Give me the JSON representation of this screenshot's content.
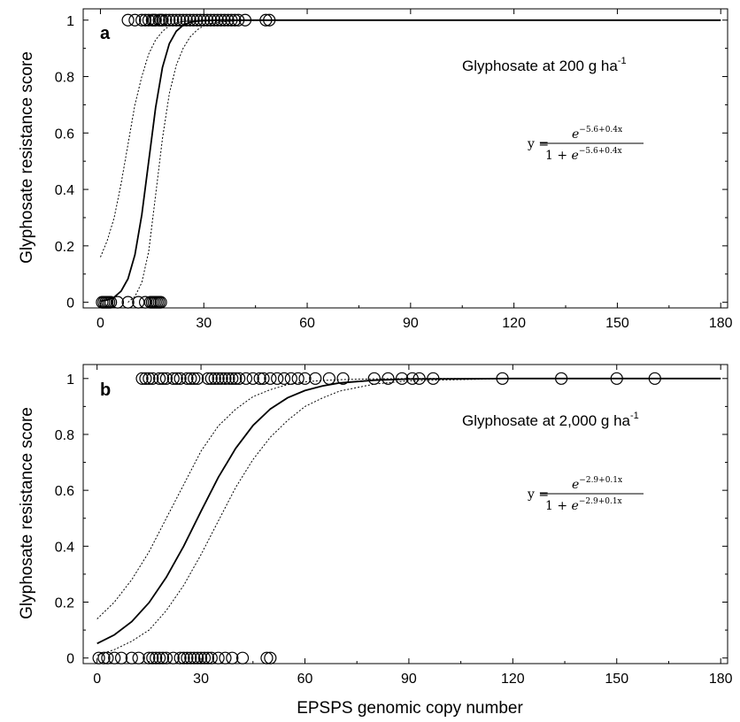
{
  "chart_data": [
    {
      "type": "scatter",
      "panel_label": "a",
      "annotation": {
        "text": "Glyphosate at 200 g ha",
        "sup": "-1"
      },
      "equation": {
        "lhs": "y =",
        "base": "e",
        "exponent": "−5.6+0.4x",
        "denominator_prefix": "1 + "
      },
      "ylabel": "Glyphosate resistance score",
      "xlabel": "",
      "xlim": [
        -5,
        182
      ],
      "ylim": [
        -0.02,
        1.04
      ],
      "xticks": [
        0,
        30,
        60,
        90,
        120,
        150,
        180
      ],
      "yticks": [
        0,
        0.2,
        0.4,
        0.6,
        0.8,
        1
      ],
      "ytick_labels": [
        "0",
        "0.2",
        "0.4",
        "0.6",
        "0.8",
        "1"
      ],
      "series": [
        {
          "kind": "points",
          "x": [
            0.5,
            1,
            1.5,
            2,
            2.5,
            3,
            5,
            8,
            11,
            13,
            14.5,
            15,
            15.5,
            16,
            16.5,
            17,
            17.5
          ],
          "y": [
            0,
            0,
            0,
            0,
            0,
            0,
            0,
            0,
            0,
            0,
            0,
            0,
            0,
            0,
            0,
            0,
            0
          ]
        },
        {
          "kind": "points",
          "x": [
            8,
            10,
            12,
            13,
            14,
            15,
            15.5,
            16,
            17,
            17.5,
            18,
            19,
            20,
            21,
            22,
            23,
            24,
            25,
            26,
            27,
            28,
            29,
            30,
            31,
            32,
            33,
            34,
            35,
            36,
            37,
            38,
            39,
            40,
            42,
            48,
            49
          ],
          "y": [
            1,
            1,
            1,
            1,
            1,
            1,
            1,
            1,
            1,
            1,
            1,
            1,
            1,
            1,
            1,
            1,
            1,
            1,
            1,
            1,
            1,
            1,
            1,
            1,
            1,
            1,
            1,
            1,
            1,
            1,
            1,
            1,
            1,
            1,
            1,
            1
          ]
        },
        {
          "kind": "fit",
          "x": [
            0,
            2,
            4,
            6,
            8,
            10,
            12,
            14,
            16,
            18,
            20,
            22,
            24,
            26,
            28,
            30,
            35,
            40,
            60,
            90,
            120,
            150,
            180
          ],
          "y": [
            0.0037,
            0.0081,
            0.018,
            0.0392,
            0.0832,
            0.168,
            0.31,
            0.5,
            0.69,
            0.832,
            0.9168,
            0.9608,
            0.982,
            0.9919,
            0.9963,
            0.9984,
            0.9998,
            1,
            1,
            1,
            1,
            1,
            1
          ]
        },
        {
          "kind": "ci",
          "x": [
            0,
            2,
            4,
            6,
            8,
            10,
            12,
            14,
            16,
            18,
            20,
            22,
            24,
            26,
            28,
            30,
            35,
            40,
            50,
            60,
            90,
            120,
            150,
            180
          ],
          "y": [
            0.16,
            0.22,
            0.3,
            0.42,
            0.56,
            0.7,
            0.8,
            0.88,
            0.93,
            0.96,
            0.98,
            0.99,
            0.995,
            0.997,
            0.998,
            0.999,
            1,
            1,
            1,
            1,
            1,
            1,
            1,
            1
          ]
        },
        {
          "kind": "ci",
          "x": [
            8,
            10,
            12,
            14,
            16,
            18,
            20,
            22,
            24,
            26,
            28,
            30,
            32,
            35,
            40,
            50,
            60,
            90,
            120,
            150,
            180
          ],
          "y": [
            0,
            0.02,
            0.07,
            0.18,
            0.38,
            0.58,
            0.74,
            0.84,
            0.9,
            0.94,
            0.965,
            0.98,
            0.988,
            0.994,
            0.998,
            1,
            1,
            1,
            1,
            1,
            1
          ]
        }
      ]
    },
    {
      "type": "scatter",
      "panel_label": "b",
      "annotation": {
        "text": "Glyphosate at 2,000 g ha",
        "sup": "-1"
      },
      "equation": {
        "lhs": "y =",
        "base": "e",
        "exponent": "−2.9+0.1x",
        "denominator_prefix": "1 + "
      },
      "ylabel": "Glyphosate resistance score",
      "xlabel": "EPSPS genomic copy number",
      "xlim": [
        -4,
        182
      ],
      "ylim": [
        -0.02,
        1.05
      ],
      "xticks": [
        0,
        30,
        60,
        90,
        120,
        150,
        180
      ],
      "yticks": [
        0,
        0.2,
        0.4,
        0.6,
        0.8,
        1
      ],
      "ytick_labels": [
        "0",
        "0.2",
        "0.4",
        "0.6",
        "0.8",
        "1"
      ],
      "series": [
        {
          "kind": "points",
          "x": [
            0.5,
            2,
            3,
            5,
            7,
            10,
            12,
            15,
            16,
            17,
            18,
            19,
            20,
            22,
            24,
            25,
            26,
            27,
            28,
            29,
            30,
            31,
            32,
            33,
            35,
            37,
            39,
            42,
            49,
            50
          ],
          "y": [
            0,
            0,
            0,
            0,
            0,
            0,
            0,
            0,
            0,
            0,
            0,
            0,
            0,
            0,
            0,
            0,
            0,
            0,
            0,
            0,
            0,
            0,
            0,
            0,
            0,
            0,
            0,
            0,
            0,
            0
          ]
        },
        {
          "kind": "points",
          "x": [
            13,
            14,
            15,
            16,
            18,
            19,
            20,
            22,
            23,
            24,
            26,
            27,
            28,
            29,
            32,
            33,
            34,
            35,
            36,
            37,
            38,
            39,
            40,
            41,
            43,
            45,
            47,
            48,
            50,
            52,
            54,
            56,
            58,
            60,
            63,
            67,
            71,
            80,
            84,
            88,
            91,
            93,
            97,
            117,
            134,
            150,
            161
          ],
          "y": [
            1,
            1,
            1,
            1,
            1,
            1,
            1,
            1,
            1,
            1,
            1,
            1,
            1,
            1,
            1,
            1,
            1,
            1,
            1,
            1,
            1,
            1,
            1,
            1,
            1,
            1,
            1,
            1,
            1,
            1,
            1,
            1,
            1,
            1,
            1,
            1,
            1,
            1,
            1,
            1,
            1,
            1,
            1,
            1,
            1,
            1,
            1
          ]
        },
        {
          "kind": "fit",
          "x": [
            0,
            5,
            10,
            15,
            20,
            25,
            30,
            35,
            40,
            45,
            50,
            55,
            60,
            65,
            70,
            80,
            90,
            120,
            150,
            180
          ],
          "y": [
            0.052,
            0.083,
            0.13,
            0.198,
            0.289,
            0.4,
            0.525,
            0.646,
            0.75,
            0.832,
            0.891,
            0.931,
            0.957,
            0.973,
            0.984,
            0.994,
            0.998,
            1,
            1,
            1
          ]
        },
        {
          "kind": "ci",
          "x": [
            0,
            5,
            10,
            15,
            20,
            25,
            30,
            35,
            40,
            45,
            50,
            55,
            60,
            65,
            70,
            80,
            90,
            120,
            150,
            180
          ],
          "y": [
            0.14,
            0.2,
            0.28,
            0.38,
            0.5,
            0.62,
            0.74,
            0.83,
            0.89,
            0.935,
            0.96,
            0.978,
            0.988,
            0.993,
            0.996,
            0.999,
            1,
            1,
            1,
            1
          ]
        },
        {
          "kind": "ci",
          "x": [
            0,
            5,
            10,
            15,
            20,
            25,
            30,
            35,
            40,
            45,
            50,
            55,
            60,
            65,
            70,
            80,
            90,
            120,
            150,
            180
          ],
          "y": [
            0.01,
            0.03,
            0.06,
            0.1,
            0.17,
            0.26,
            0.37,
            0.49,
            0.61,
            0.71,
            0.79,
            0.85,
            0.9,
            0.93,
            0.955,
            0.98,
            0.992,
            1,
            1,
            1
          ]
        }
      ]
    }
  ]
}
